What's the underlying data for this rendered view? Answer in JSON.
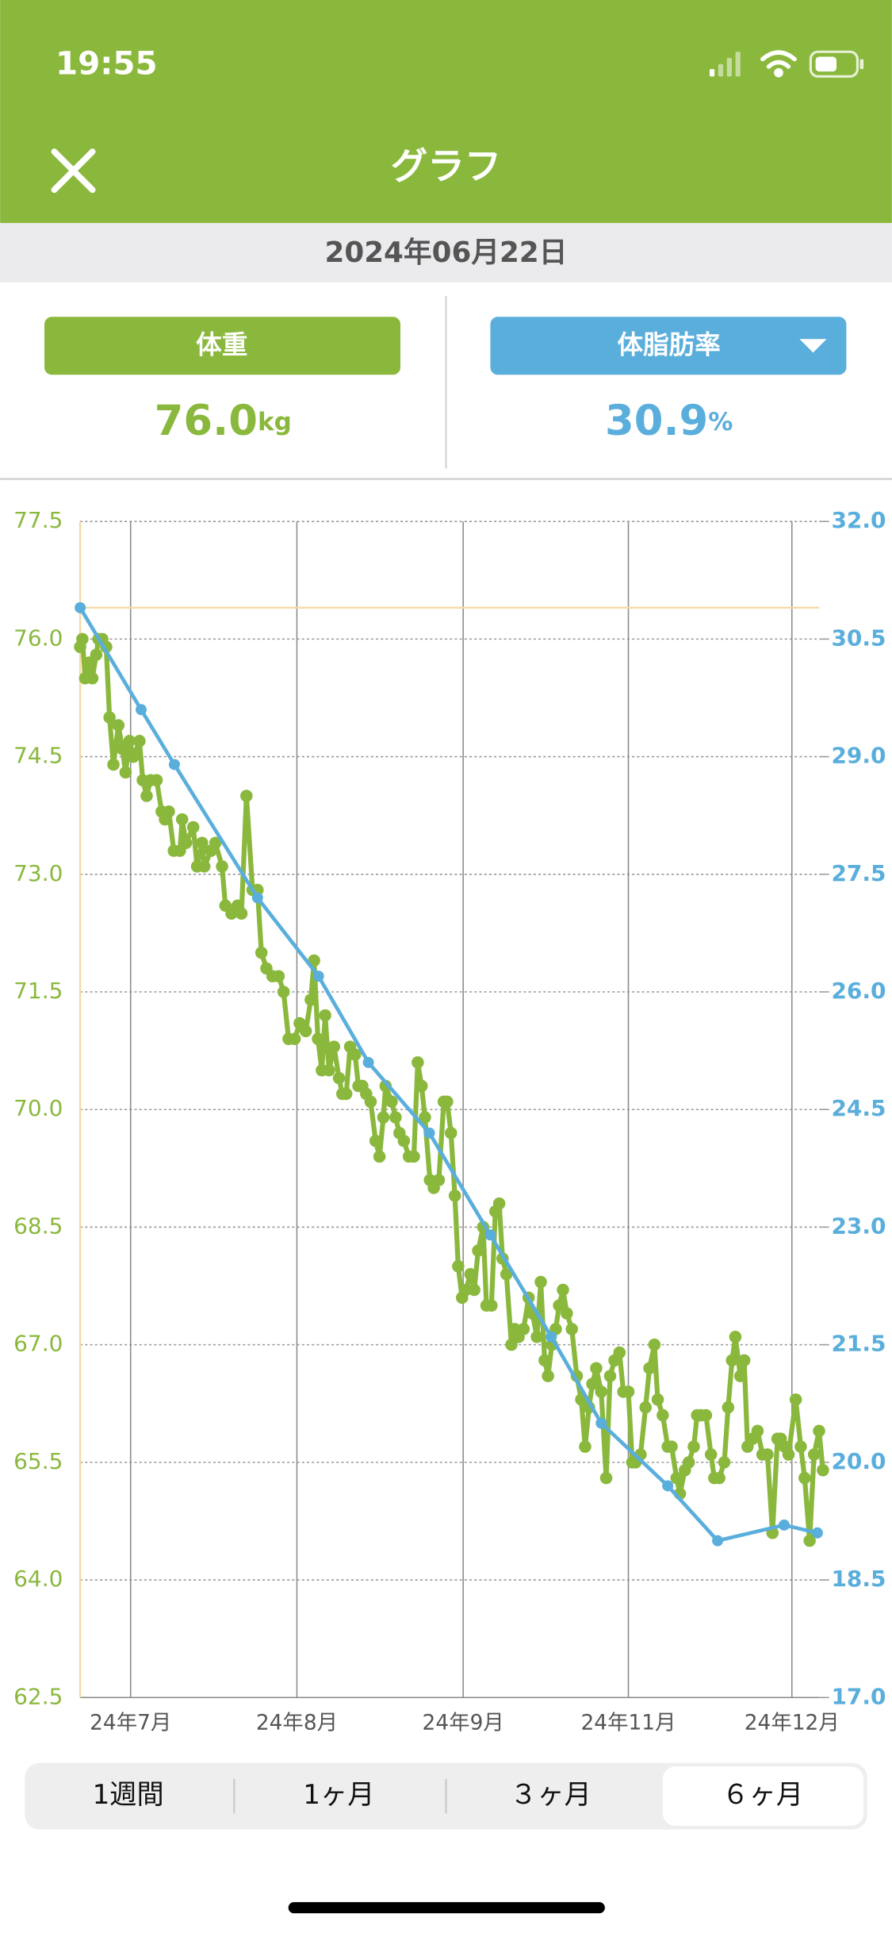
{
  "status_bar": {
    "time": "19:55"
  },
  "nav": {
    "title": "グラフ"
  },
  "date": "2024年06月22日",
  "metrics": [
    {
      "label": "体重",
      "value": "76.0",
      "unit": "kg",
      "color": "#8ab83d"
    },
    {
      "label": "体脂肪率",
      "value": "30.9",
      "unit": "%",
      "color": "#5aaedc"
    }
  ],
  "chart_data": {
    "type": "line",
    "xlim": [
      0,
      135
    ],
    "xticks": [
      {
        "value": 9.1,
        "label": "24年7月"
      },
      {
        "value": 39.1,
        "label": "24年8月"
      },
      {
        "value": 69.1,
        "label": "24年9月"
      },
      {
        "value": 98.9,
        "label": "24年11月"
      },
      {
        "value": 128.4,
        "label": "24年12月"
      }
    ],
    "ylim": [
      62.5,
      77.5
    ],
    "yticks": [
      62.5,
      {
        "value": 64,
        "label": "64.0"
      },
      65.5,
      {
        "value": 67,
        "label": "67.0"
      },
      68.5,
      {
        "value": 70,
        "label": "70.0"
      },
      71.5,
      {
        "value": 73,
        "label": "73.0"
      },
      74.5,
      {
        "value": 76,
        "label": "76.0"
      },
      77.5
    ],
    "y2lim": [
      17,
      32
    ],
    "y2ticks": [
      {
        "value": 17,
        "label": "17.0"
      },
      18.5,
      {
        "value": 20,
        "label": "20.0"
      },
      21.5,
      {
        "value": 23,
        "label": "23.0"
      },
      24.5,
      {
        "value": 26,
        "label": "26.0"
      },
      27.5,
      {
        "value": 29,
        "label": "29.0"
      },
      30.5,
      {
        "value": 32,
        "label": "32.0"
      }
    ],
    "grid": true,
    "reference_line": {
      "value": 30.9,
      "axis": "y2",
      "color": "#f5d9a8"
    },
    "series": [
      {
        "color": "#8ab83d",
        "x": [
          0,
          0.4,
          0.9,
          1.6,
          2.2,
          2.9,
          3.3,
          4.0,
          4.7,
          5.3,
          6.0,
          6.9,
          7.6,
          8.2,
          8.9,
          9.6,
          10.7,
          11.3,
          12.0,
          12.7,
          13.8,
          14.7,
          15.3,
          16.0,
          16.9,
          18.0,
          18.4,
          19.1,
          20.4,
          21.1,
          22.0,
          22.4,
          23.6,
          24.4,
          25.6,
          26.2,
          27.3,
          28.4,
          29.1,
          30.0,
          31.1,
          32.0,
          32.7,
          33.6,
          34.7,
          35.8,
          36.7,
          37.6,
          38.7,
          39.6,
          40.7,
          41.6,
          42.2,
          42.9,
          43.6,
          44.2,
          44.9,
          45.8,
          46.7,
          47.3,
          48.0,
          48.7,
          49.6,
          50.2,
          50.9,
          51.6,
          52.4,
          53.3,
          54.0,
          54.7,
          55.1,
          56.2,
          56.9,
          57.6,
          58.4,
          59.3,
          60.2,
          60.9,
          61.6,
          62.2,
          63.1,
          63.8,
          64.7,
          65.6,
          66.2,
          66.9,
          67.6,
          68.2,
          68.9,
          69.6,
          70.4,
          71.1,
          71.8,
          72.7,
          73.3,
          74.2,
          74.9,
          75.6,
          76.2,
          76.9,
          77.8,
          78.4,
          79.1,
          80.0,
          80.9,
          81.6,
          82.4,
          83.1,
          83.8,
          84.4,
          85.1,
          85.8,
          86.4,
          87.1,
          87.8,
          88.7,
          89.6,
          90.4,
          91.1,
          91.8,
          92.4,
          93.1,
          94.0,
          94.9,
          95.6,
          96.4,
          97.3,
          98.0,
          98.9,
          99.6,
          100.2,
          101.1,
          102.0,
          102.7,
          103.6,
          104.2,
          105.1,
          106.0,
          106.7,
          107.6,
          108.2,
          109.1,
          109.8,
          110.7,
          111.3,
          112.0,
          112.9,
          113.8,
          114.4,
          115.3,
          116.2,
          116.9,
          117.6,
          118.2,
          119.1,
          119.8,
          120.4,
          121.3,
          122.2,
          123.1,
          124.0,
          124.9,
          125.8,
          126.4,
          127.1,
          127.8,
          129.1,
          130.0,
          130.7,
          131.6,
          132.4,
          133.3,
          134.0
        ],
        "values": [
          75.9,
          76.0,
          75.5,
          75.7,
          75.5,
          75.8,
          76.0,
          76.0,
          75.9,
          75.0,
          74.4,
          74.9,
          74.6,
          74.3,
          74.7,
          74.5,
          74.7,
          74.2,
          74.0,
          74.2,
          74.2,
          73.8,
          73.7,
          73.8,
          73.3,
          73.3,
          73.7,
          73.4,
          73.6,
          73.1,
          73.4,
          73.1,
          73.3,
          73.4,
          73.1,
          72.6,
          72.5,
          72.6,
          72.5,
          74.0,
          72.8,
          72.8,
          72.0,
          71.8,
          71.7,
          71.7,
          71.5,
          70.9,
          70.9,
          71.1,
          71.0,
          71.4,
          71.9,
          70.9,
          70.5,
          71.2,
          70.5,
          70.8,
          70.4,
          70.2,
          70.2,
          70.8,
          70.7,
          70.3,
          70.3,
          70.2,
          70.1,
          69.6,
          69.4,
          69.9,
          70.3,
          70.1,
          69.9,
          69.7,
          69.6,
          69.4,
          69.4,
          70.6,
          70.3,
          69.9,
          69.1,
          69.0,
          69.1,
          70.1,
          70.1,
          69.7,
          68.9,
          68.0,
          67.6,
          67.7,
          67.9,
          67.7,
          68.2,
          68.5,
          67.5,
          67.5,
          68.7,
          68.8,
          68.1,
          67.9,
          67.0,
          67.2,
          67.1,
          67.2,
          67.6,
          67.4,
          67.1,
          67.8,
          66.8,
          66.6,
          67.0,
          67.2,
          67.5,
          67.7,
          67.4,
          67.2,
          66.6,
          66.3,
          65.7,
          66.2,
          66.5,
          66.7,
          66.4,
          65.3,
          66.6,
          66.8,
          66.9,
          66.4,
          66.4,
          65.5,
          65.5,
          65.6,
          66.2,
          66.7,
          67.0,
          66.3,
          66.1,
          65.7,
          65.7,
          65.3,
          65.1,
          65.4,
          65.5,
          65.7,
          66.1,
          66.1,
          66.1,
          65.6,
          65.3,
          65.3,
          65.5,
          66.2,
          66.8,
          67.1,
          66.6,
          66.8,
          65.7,
          65.8,
          65.9,
          65.6,
          65.6,
          64.6,
          65.8,
          65.8,
          65.7,
          65.6,
          66.3,
          65.7,
          65.3,
          64.5,
          65.6,
          65.9,
          65.4
        ]
      },
      {
        "color": "#5aaedc",
        "axis": "y2",
        "x": [
          0,
          11,
          17,
          32,
          43,
          52,
          63,
          74,
          85,
          94,
          106,
          115,
          127,
          133
        ],
        "values": [
          30.9,
          29.6,
          28.9,
          27.2,
          26.2,
          25.1,
          24.2,
          22.9,
          21.6,
          20.5,
          19.7,
          19.0,
          19.2,
          19.1
        ]
      }
    ]
  },
  "periods": [
    "1週間",
    "1ヶ月",
    "３ヶ月",
    "６ヶ月"
  ]
}
